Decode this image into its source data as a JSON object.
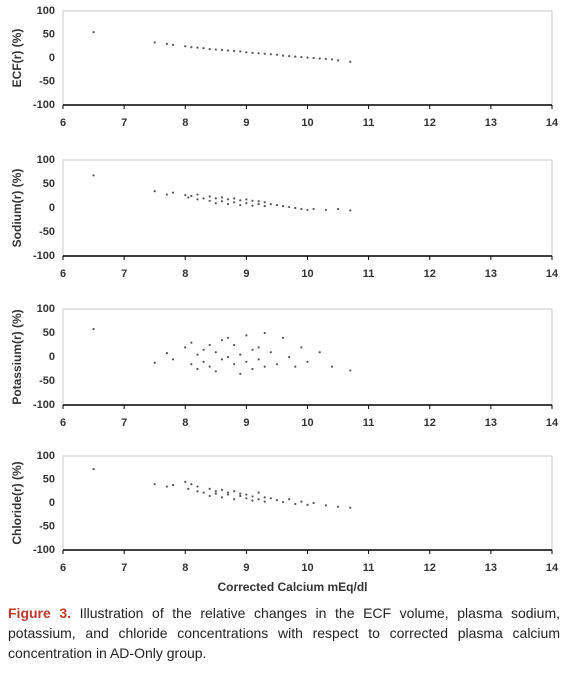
{
  "chart_data": [
    {
      "type": "scatter",
      "ylabel": "ECF(r) (%)",
      "color": "#555555",
      "x": [
        6.5,
        7.5,
        7.7,
        7.8,
        8.0,
        8.1,
        8.2,
        8.3,
        8.4,
        8.5,
        8.6,
        8.7,
        8.8,
        8.9,
        9.0,
        9.1,
        9.2,
        9.3,
        9.4,
        9.5,
        9.6,
        9.7,
        9.8,
        9.9,
        10.0,
        10.1,
        10.2,
        10.3,
        10.4,
        10.5,
        10.7
      ],
      "y": [
        55,
        33,
        30,
        28,
        25,
        23,
        22,
        21,
        19,
        18,
        17,
        16,
        15,
        14,
        12,
        11,
        10,
        9,
        8,
        7,
        5,
        4,
        3,
        2,
        1,
        0,
        -1,
        -2,
        -3,
        -5,
        -8
      ],
      "xlim": [
        6,
        14
      ],
      "ylim": [
        -100,
        100
      ],
      "xticks": [
        6,
        7,
        8,
        9,
        10,
        11,
        12,
        13,
        14
      ],
      "yticks": [
        -100,
        -50,
        0,
        50,
        100
      ]
    },
    {
      "type": "scatter",
      "ylabel": "Sodium(r) (%)",
      "color": "#555555",
      "x": [
        6.5,
        7.5,
        7.7,
        7.8,
        8.0,
        8.05,
        8.1,
        8.2,
        8.2,
        8.3,
        8.4,
        8.4,
        8.5,
        8.5,
        8.6,
        8.6,
        8.7,
        8.7,
        8.8,
        8.8,
        8.9,
        8.9,
        9.0,
        9.0,
        9.1,
        9.1,
        9.2,
        9.2,
        9.3,
        9.3,
        9.4,
        9.5,
        9.6,
        9.7,
        9.8,
        9.9,
        10.0,
        10.1,
        10.3,
        10.5,
        10.7
      ],
      "y": [
        68,
        35,
        28,
        32,
        27,
        22,
        25,
        18,
        28,
        20,
        15,
        24,
        10,
        20,
        14,
        22,
        8,
        18,
        12,
        20,
        6,
        16,
        10,
        18,
        5,
        15,
        8,
        14,
        4,
        12,
        8,
        6,
        4,
        2,
        0,
        -2,
        -4,
        -2,
        -4,
        -2,
        -5
      ],
      "xlim": [
        6,
        14
      ],
      "ylim": [
        -100,
        100
      ],
      "xticks": [
        6,
        7,
        8,
        9,
        10,
        11,
        12,
        13,
        14
      ],
      "yticks": [
        -100,
        -50,
        0,
        50,
        100
      ]
    },
    {
      "type": "scatter",
      "ylabel": "Potassium(r) (%)",
      "color": "#555555",
      "x": [
        6.5,
        7.5,
        7.7,
        7.8,
        8.0,
        8.1,
        8.1,
        8.2,
        8.2,
        8.3,
        8.3,
        8.4,
        8.4,
        8.5,
        8.5,
        8.6,
        8.6,
        8.7,
        8.7,
        8.8,
        8.8,
        8.9,
        8.9,
        9.0,
        9.0,
        9.1,
        9.1,
        9.2,
        9.2,
        9.3,
        9.3,
        9.4,
        9.5,
        9.6,
        9.7,
        9.8,
        9.9,
        10.0,
        10.2,
        10.4,
        10.7
      ],
      "y": [
        58,
        -12,
        8,
        -5,
        20,
        -15,
        30,
        5,
        -25,
        15,
        -10,
        25,
        -20,
        10,
        -30,
        35,
        -5,
        40,
        0,
        -15,
        25,
        5,
        -35,
        45,
        -10,
        15,
        -25,
        20,
        -5,
        50,
        -20,
        10,
        -15,
        40,
        0,
        -20,
        20,
        -10,
        10,
        -20,
        -28
      ],
      "xlim": [
        6,
        14
      ],
      "ylim": [
        -100,
        100
      ],
      "xticks": [
        6,
        7,
        8,
        9,
        10,
        11,
        12,
        13,
        14
      ],
      "yticks": [
        -100,
        -50,
        0,
        50,
        100
      ]
    },
    {
      "type": "scatter",
      "ylabel": "Chloride(r) (%)",
      "xlabel": "Corrected Calcium mEq/dl",
      "color": "#555555",
      "x": [
        6.5,
        7.5,
        7.7,
        7.8,
        8.0,
        8.05,
        8.1,
        8.2,
        8.2,
        8.3,
        8.4,
        8.4,
        8.5,
        8.5,
        8.6,
        8.6,
        8.7,
        8.7,
        8.8,
        8.8,
        8.9,
        8.9,
        9.0,
        9.0,
        9.1,
        9.1,
        9.2,
        9.2,
        9.3,
        9.3,
        9.4,
        9.5,
        9.6,
        9.7,
        9.8,
        9.9,
        10.0,
        10.1,
        10.3,
        10.5,
        10.7
      ],
      "y": [
        72,
        40,
        35,
        38,
        45,
        30,
        40,
        25,
        35,
        22,
        30,
        15,
        25,
        20,
        28,
        12,
        22,
        18,
        25,
        8,
        15,
        20,
        10,
        18,
        5,
        14,
        22,
        8,
        12,
        3,
        10,
        6,
        2,
        8,
        -2,
        3,
        -4,
        0,
        -5,
        -8,
        -10
      ],
      "xlim": [
        6,
        14
      ],
      "ylim": [
        -100,
        100
      ],
      "xticks": [
        6,
        7,
        8,
        9,
        10,
        11,
        12,
        13,
        14
      ],
      "yticks": [
        -100,
        -50,
        0,
        50,
        100
      ]
    }
  ],
  "caption": {
    "label": "Figure 3.",
    "text": "Illustration of the relative changes in the ECF volume, plasma sodium, potassium, and chloride concentrations with respect to corrected plasma calcium concentration in AD-Only group."
  }
}
